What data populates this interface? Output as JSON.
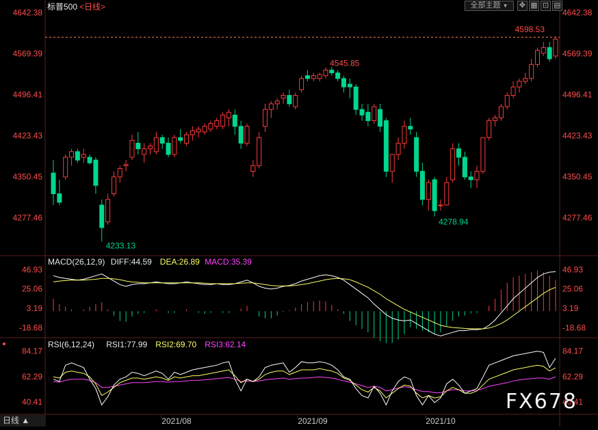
{
  "header": {
    "title": "标普500",
    "period": "<日线>",
    "theme_button": "全部主题",
    "theme_arrow": "▼"
  },
  "panels": {
    "main": {
      "y_ticks": [
        "4642.38",
        "4569.39",
        "4496.41",
        "4423.43",
        "4350.45",
        "4277.46"
      ],
      "annotations": {
        "high1": "4545.85",
        "high2": "4598.53",
        "low1": "4233.13",
        "low2": "4278.94"
      },
      "reference_line": 4598.53
    },
    "macd": {
      "title": "MACD(26,12,9)",
      "diff": "DIFF:44.59",
      "dea": "DEA:26.89",
      "macd": "MACD:35.39",
      "y_ticks": [
        "46.93",
        "25.06",
        "3.19",
        "-18.68"
      ]
    },
    "rsi": {
      "title": "RSI(6,12,24)",
      "rsi1": "RSI1:77.99",
      "rsi2": "RSI2:69.70",
      "rsi3": "RSI3:62.14",
      "y_ticks": [
        "84.17",
        "62.29",
        "40.41"
      ]
    }
  },
  "x_axis": {
    "labels": [
      "2021/08",
      "2021/09",
      "2021/10"
    ]
  },
  "bottom_tab": "日线 ▲",
  "watermark": "FX678",
  "colors": {
    "up": "#ff3b3b",
    "down": "#00d68f",
    "diff": "#ffffff",
    "dea": "#ffff66",
    "macd_label": "#ff44ff",
    "rsi1": "#ffffff",
    "rsi2": "#ffff66",
    "rsi3": "#ff44ff",
    "axis_text": "#ff4b4b",
    "grid": "#5a1e1e"
  },
  "chart_data": [
    {
      "type": "candlestick",
      "title": "标普500",
      "ylim": [
        4210,
        4650
      ],
      "candles": [
        [
          4357,
          4380,
          4300,
          4320
        ],
        [
          4320,
          4345,
          4300,
          4305
        ],
        [
          4350,
          4390,
          4345,
          4385
        ],
        [
          4385,
          4400,
          4370,
          4395
        ],
        [
          4395,
          4400,
          4375,
          4380
        ],
        [
          4385,
          4400,
          4375,
          4390
        ],
        [
          4385,
          4390,
          4372,
          4375
        ],
        [
          4380,
          4385,
          4320,
          4335
        ],
        [
          4300,
          4310,
          4235,
          4260
        ],
        [
          4270,
          4320,
          4265,
          4310
        ],
        [
          4320,
          4360,
          4315,
          4350
        ],
        [
          4350,
          4370,
          4340,
          4365
        ],
        [
          4370,
          4380,
          4360,
          4372
        ],
        [
          4385,
          4425,
          4380,
          4415
        ],
        [
          4410,
          4430,
          4390,
          4400
        ],
        [
          4390,
          4410,
          4375,
          4400
        ],
        [
          4400,
          4410,
          4390,
          4405
        ],
        [
          4395,
          4430,
          4390,
          4420
        ],
        [
          4420,
          4425,
          4400,
          4410
        ],
        [
          4410,
          4420,
          4385,
          4390
        ],
        [
          4390,
          4425,
          4385,
          4420
        ],
        [
          4420,
          4435,
          4410,
          4415
        ],
        [
          4410,
          4430,
          4405,
          4425
        ],
        [
          4425,
          4440,
          4415,
          4432
        ],
        [
          4430,
          4440,
          4420,
          4435
        ],
        [
          4430,
          4445,
          4425,
          4440
        ],
        [
          4435,
          4450,
          4430,
          4445
        ],
        [
          4440,
          4455,
          4435,
          4450
        ],
        [
          4440,
          4465,
          4435,
          4460
        ],
        [
          4455,
          4470,
          4440,
          4465
        ],
        [
          4460,
          4470,
          4425,
          4440
        ],
        [
          4440,
          4450,
          4400,
          4410
        ],
        [
          4410,
          4445,
          4405,
          4440
        ],
        [
          4360,
          4380,
          4350,
          4370
        ],
        [
          4370,
          4430,
          4365,
          4420
        ],
        [
          4440,
          4480,
          4430,
          4470
        ],
        [
          4470,
          4485,
          4455,
          4480
        ],
        [
          4480,
          4490,
          4470,
          4485
        ],
        [
          4490,
          4500,
          4480,
          4495
        ],
        [
          4495,
          4505,
          4475,
          4480
        ],
        [
          4475,
          4500,
          4470,
          4495
        ],
        [
          4505,
          4530,
          4500,
          4525
        ],
        [
          4530,
          4540,
          4520,
          4525
        ],
        [
          4525,
          4535,
          4520,
          4530
        ],
        [
          4525,
          4535,
          4520,
          4532
        ],
        [
          4530,
          4545,
          4525,
          4540
        ],
        [
          4540,
          4545,
          4530,
          4535
        ],
        [
          4535,
          4540,
          4520,
          4525
        ],
        [
          4525,
          4530,
          4500,
          4510
        ],
        [
          4515,
          4525,
          4490,
          4510
        ],
        [
          4510,
          4515,
          4460,
          4470
        ],
        [
          4470,
          4480,
          4450,
          4460
        ],
        [
          4465,
          4480,
          4440,
          4450
        ],
        [
          4450,
          4480,
          4445,
          4475
        ],
        [
          4470,
          4480,
          4430,
          4440
        ],
        [
          4450,
          4455,
          4350,
          4360
        ],
        [
          4360,
          4390,
          4340,
          4390
        ],
        [
          4390,
          4420,
          4380,
          4410
        ],
        [
          4410,
          4450,
          4400,
          4440
        ],
        [
          4440,
          4455,
          4425,
          4435
        ],
        [
          4420,
          4430,
          4350,
          4360
        ],
        [
          4360,
          4375,
          4300,
          4310
        ],
        [
          4310,
          4345,
          4290,
          4340
        ],
        [
          4345,
          4350,
          4280,
          4290
        ],
        [
          4300,
          4310,
          4290,
          4300
        ],
        [
          4300,
          4350,
          4300,
          4340
        ],
        [
          4345,
          4410,
          4340,
          4400
        ],
        [
          4400,
          4410,
          4370,
          4385
        ],
        [
          4385,
          4395,
          4345,
          4350
        ],
        [
          4350,
          4360,
          4330,
          4345
        ],
        [
          4345,
          4370,
          4330,
          4360
        ],
        [
          4360,
          4420,
          4355,
          4420
        ],
        [
          4420,
          4455,
          4415,
          4450
        ],
        [
          4450,
          4460,
          4440,
          4455
        ],
        [
          4455,
          4480,
          4450,
          4475
        ],
        [
          4475,
          4500,
          4470,
          4495
        ],
        [
          4495,
          4520,
          4490,
          4510
        ],
        [
          4510,
          4525,
          4500,
          4520
        ],
        [
          4520,
          4535,
          4515,
          4525
        ],
        [
          4525,
          4560,
          4520,
          4550
        ],
        [
          4550,
          4580,
          4545,
          4575
        ],
        [
          4570,
          4590,
          4565,
          4580
        ],
        [
          4580,
          4590,
          4555,
          4560
        ],
        [
          4565,
          4600,
          4560,
          4595
        ]
      ]
    },
    {
      "type": "line",
      "title": "MACD(26,12,9)",
      "ylim": [
        -30,
        58
      ],
      "series": [
        {
          "name": "DIFF",
          "values": [
            40,
            38,
            37,
            36,
            35,
            36,
            38,
            40,
            42,
            38,
            34,
            30,
            28,
            30,
            31,
            31,
            32,
            33,
            32,
            31,
            31,
            32,
            33,
            32,
            31,
            30,
            30,
            31,
            30,
            30,
            31,
            33,
            35,
            32,
            28,
            26,
            25,
            26,
            28,
            29,
            31,
            34,
            36,
            38,
            40,
            41,
            40,
            38,
            35,
            30,
            25,
            20,
            15,
            8,
            2,
            -4,
            -8,
            -10,
            -11,
            -10,
            -14,
            -18,
            -22,
            -26,
            -28,
            -26,
            -24,
            -22,
            -22,
            -21,
            -21,
            -20,
            -16,
            -10,
            -2,
            6,
            14,
            20,
            26,
            32,
            38,
            42,
            44,
            44.59
          ]
        },
        {
          "name": "DEA",
          "values": [
            33,
            34,
            34.5,
            35,
            35,
            35,
            35.5,
            36,
            37,
            37,
            36.5,
            35.5,
            34,
            33,
            32.5,
            32,
            32,
            32,
            32,
            32,
            32,
            32,
            32,
            32,
            32,
            31.5,
            31,
            31,
            31,
            31,
            31,
            31.5,
            32,
            32,
            31,
            30,
            29,
            28.5,
            28.5,
            28.5,
            29,
            30,
            31,
            32.5,
            34,
            35.5,
            36.5,
            37,
            36.5,
            35.5,
            33,
            30,
            27,
            23,
            19,
            14,
            10,
            6,
            2,
            -1,
            -4,
            -7,
            -10,
            -13,
            -16,
            -17.5,
            -18.5,
            -19,
            -19.5,
            -19.7,
            -20,
            -20,
            -19,
            -17,
            -14,
            -10,
            -5,
            0,
            5,
            10,
            15,
            20,
            24,
            26.89
          ]
        }
      ]
    },
    {
      "type": "line",
      "title": "RSI(6,12,24)",
      "ylim": [
        30,
        92
      ],
      "series": [
        {
          "name": "RSI1",
          "values": [
            60,
            58,
            72,
            74,
            72,
            70,
            60,
            52,
            38,
            45,
            55,
            60,
            62,
            66,
            65,
            63,
            65,
            67,
            65,
            60,
            66,
            64,
            66,
            68,
            69,
            70,
            71,
            72,
            74,
            75,
            60,
            50,
            60,
            58,
            62,
            70,
            72,
            73,
            74,
            66,
            70,
            75,
            74,
            74,
            75,
            74,
            72,
            68,
            62,
            60,
            52,
            46,
            44,
            54,
            48,
            38,
            50,
            58,
            62,
            60,
            46,
            38,
            46,
            40,
            44,
            56,
            60,
            55,
            48,
            50,
            52,
            62,
            72,
            74,
            76,
            78,
            80,
            81,
            82,
            83,
            84,
            83,
            70,
            77.99
          ]
        },
        {
          "name": "RSI2",
          "values": [
            62,
            61,
            66,
            67,
            66,
            65,
            62,
            56,
            46,
            49,
            53,
            57,
            59,
            61,
            61,
            60,
            61,
            62,
            61,
            59,
            62,
            61,
            62,
            63,
            63,
            64,
            65,
            66,
            67,
            68,
            63,
            57,
            60,
            58,
            60,
            64,
            66,
            67,
            67,
            64,
            66,
            68,
            68,
            68,
            69,
            68,
            67,
            65,
            61,
            59,
            55,
            51,
            49,
            53,
            50,
            44,
            48,
            52,
            55,
            54,
            48,
            44,
            46,
            44,
            45,
            50,
            53,
            51,
            48,
            48,
            50,
            55,
            60,
            62,
            64,
            66,
            68,
            69,
            70,
            71,
            72,
            71,
            67,
            69.7
          ]
        },
        {
          "name": "RSI3",
          "values": [
            58,
            57.5,
            59,
            60,
            60,
            60,
            59,
            57,
            53,
            53,
            54,
            55,
            56,
            57,
            57,
            57,
            57.5,
            58,
            58,
            57.5,
            58,
            58,
            58.5,
            59,
            59,
            59.5,
            60,
            60.5,
            61,
            61.5,
            60,
            58,
            58.5,
            58,
            58.5,
            59.5,
            60,
            60.5,
            61,
            60,
            60.5,
            61,
            61,
            61.5,
            62,
            61.5,
            61,
            60,
            58.5,
            57.5,
            56,
            54.5,
            53,
            54,
            53,
            50,
            51,
            52.5,
            53.5,
            53,
            51,
            49.5,
            49.5,
            48.5,
            48.5,
            50,
            51,
            51,
            50,
            50,
            50.5,
            52,
            54,
            55,
            56,
            57,
            58.5,
            59.5,
            60,
            60.5,
            61,
            61,
            60,
            62.14
          ]
        }
      ]
    }
  ]
}
